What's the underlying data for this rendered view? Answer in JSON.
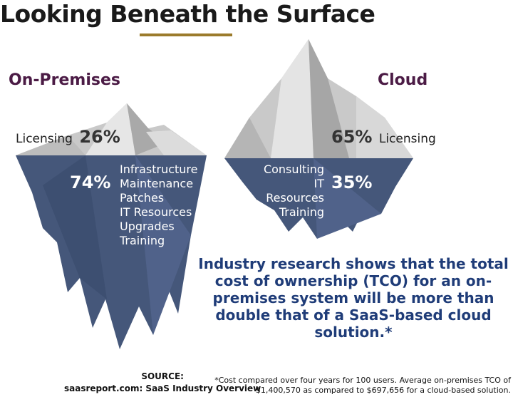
{
  "title": "Looking Beneath the Surface",
  "colors": {
    "title_purple": "#4b1b45",
    "gold": "#9b7b2c",
    "iceberg_navy": "#45577a",
    "tco_blue": "#1f3c78"
  },
  "on_premises": {
    "heading": "On-Premises",
    "above": {
      "label": "Licensing",
      "percent": "26%"
    },
    "below": {
      "percent": "74%",
      "items": [
        "Infrastructure",
        "Maintenance",
        "Patches",
        "IT Resources",
        "Upgrades",
        "Training"
      ]
    }
  },
  "cloud": {
    "heading": "Cloud",
    "above": {
      "label": "Licensing",
      "percent": "65%"
    },
    "below": {
      "percent": "35%",
      "items": [
        "Consulting",
        "IT Resources",
        "Training"
      ]
    }
  },
  "tco_statement": "Industry research shows that the total cost of ownership (TCO) for an on-premises system will be more than double that of a SaaS-based cloud solution.*",
  "source": {
    "label": "SOURCE:",
    "text": "saasreport.com:  SaaS Industry Overview"
  },
  "footnote": "*Cost compared over four years for 100 users. Average on-premises TCO of $1,400,570 as compared to $697,656 for a cloud-based solution."
}
